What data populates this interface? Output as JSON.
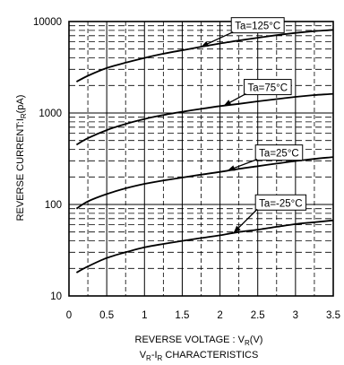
{
  "chart_data": {
    "type": "line",
    "title": "",
    "ylabel": "REVERSE CURRENT:I",
    "ylabel_sub": "R",
    "ylabel_unit": "(pA)",
    "xlabel": "REVERSE VOLTAGE : V",
    "xlabel_sub": "R",
    "xlabel_unit": "(V)",
    "caption_main": "V",
    "caption_sub1": "R",
    "caption_mid": "-I",
    "caption_sub2": "R",
    "caption_end": " CHARACTERISTICS",
    "xlim": [
      0,
      3.5
    ],
    "ylim": [
      10,
      10000
    ],
    "yscale": "log",
    "grid": true,
    "x_ticks": [
      "0",
      "0.5",
      "1",
      "1.5",
      "2",
      "2.5",
      "3",
      "3.5"
    ],
    "y_ticks": [
      "10",
      "100",
      "1000",
      "10000"
    ],
    "series": [
      {
        "name": "Ta=125°C",
        "x": [
          0.1,
          0.25,
          0.5,
          0.75,
          1.0,
          1.25,
          1.5,
          1.75,
          2.0,
          2.25,
          2.5,
          2.75,
          3.0,
          3.25,
          3.5
        ],
        "y": [
          2200,
          2550,
          3100,
          3550,
          4000,
          4450,
          4850,
          5300,
          5750,
          6200,
          6650,
          7100,
          7500,
          7850,
          8100
        ],
        "label_x": 2.15,
        "label_y": 9000,
        "arrow_to_x": 1.75,
        "arrow_to_y": 5300
      },
      {
        "name": "Ta=75°C",
        "x": [
          0.1,
          0.25,
          0.5,
          0.75,
          1.0,
          1.25,
          1.5,
          1.75,
          2.0,
          2.25,
          2.5,
          2.75,
          3.0,
          3.25,
          3.5
        ],
        "y": [
          450,
          530,
          650,
          760,
          860,
          950,
          1030,
          1110,
          1190,
          1260,
          1340,
          1420,
          1500,
          1570,
          1620
        ],
        "label_x": 2.32,
        "label_y": 1900,
        "arrow_to_x": 2.05,
        "arrow_to_y": 1200
      },
      {
        "name": "Ta=25°C",
        "x": [
          0.1,
          0.25,
          0.5,
          0.75,
          1.0,
          1.25,
          1.5,
          1.75,
          2.0,
          2.25,
          2.5,
          2.75,
          3.0,
          3.25,
          3.5
        ],
        "y": [
          90,
          108,
          130,
          150,
          168,
          183,
          197,
          212,
          227,
          245,
          262,
          280,
          298,
          315,
          330
        ],
        "label_x": 2.47,
        "label_y": 365,
        "arrow_to_x": 2.1,
        "arrow_to_y": 235
      },
      {
        "name": "Ta=-25°C",
        "x": [
          0.1,
          0.25,
          0.5,
          0.75,
          1.0,
          1.25,
          1.5,
          1.75,
          2.0,
          2.25,
          2.5,
          2.75,
          3.0,
          3.25,
          3.5
        ],
        "y": [
          18,
          21,
          26,
          30,
          34,
          37,
          40,
          43,
          46,
          50,
          53,
          57,
          61,
          64,
          67
        ],
        "label_x": 2.47,
        "label_y": 104,
        "arrow_to_x": 2.18,
        "arrow_to_y": 49
      }
    ]
  }
}
